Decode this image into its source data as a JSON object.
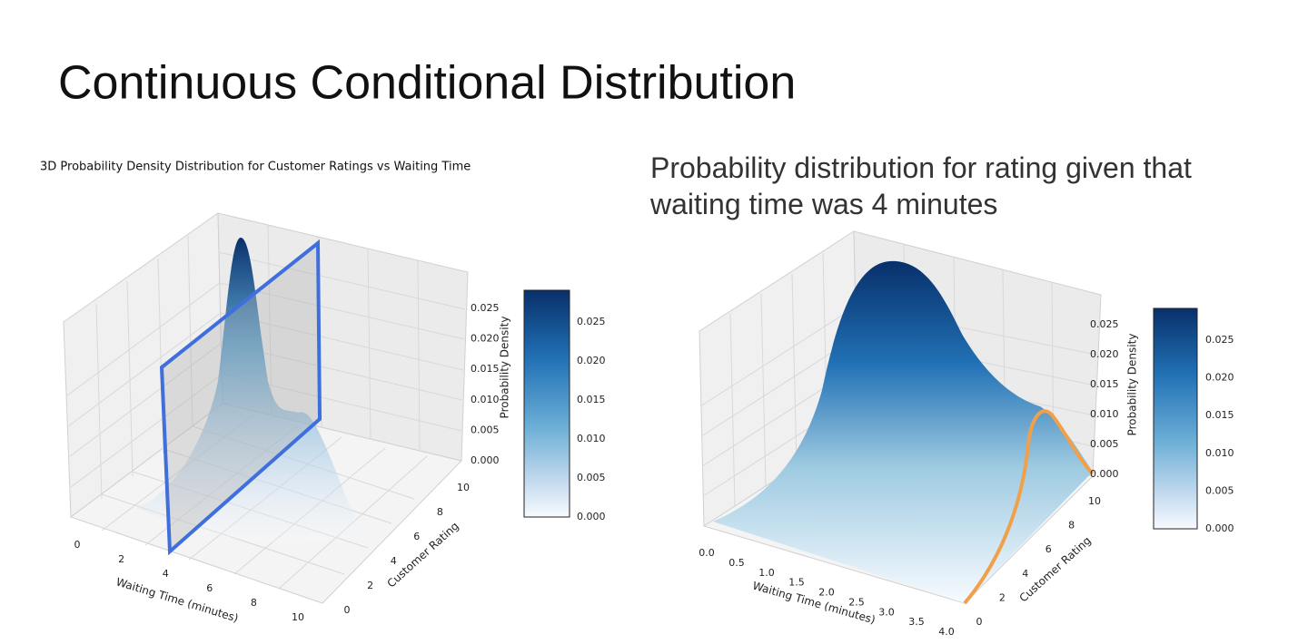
{
  "title": "Continuous Conditional Distribution",
  "left_plot": {
    "title": "3D Probability Density Distribution for Customer Ratings vs Waiting Time",
    "x_label": "Waiting Time (minutes)",
    "y_label": "Customer Rating",
    "z_label": "Probability Density",
    "x_ticks": [
      "0",
      "2",
      "4",
      "6",
      "8",
      "10"
    ],
    "y_ticks": [
      "0",
      "2",
      "4",
      "6",
      "8",
      "10"
    ],
    "z_ticks": [
      "0.000",
      "0.005",
      "0.010",
      "0.015",
      "0.020",
      "0.025"
    ],
    "colorbar_ticks": [
      "0.000",
      "0.005",
      "0.010",
      "0.015",
      "0.020",
      "0.025"
    ]
  },
  "right_plot": {
    "caption_lines": [
      "Probability distribution for rating given that",
      "waiting time was 4 minutes"
    ],
    "x_label": "Waiting Time (minutes)",
    "y_label": "Customer Rating",
    "z_label": "Probability Density",
    "x_ticks": [
      "0.0",
      "0.5",
      "1.0",
      "1.5",
      "2.0",
      "2.5",
      "3.0",
      "3.5",
      "4.0"
    ],
    "y_ticks": [
      "0",
      "2",
      "4",
      "6",
      "8",
      "10"
    ],
    "z_ticks": [
      "0.000",
      "0.005",
      "0.010",
      "0.015",
      "0.020",
      "0.025"
    ],
    "colorbar_ticks": [
      "0.000",
      "0.005",
      "0.010",
      "0.015",
      "0.020",
      "0.025"
    ]
  }
}
